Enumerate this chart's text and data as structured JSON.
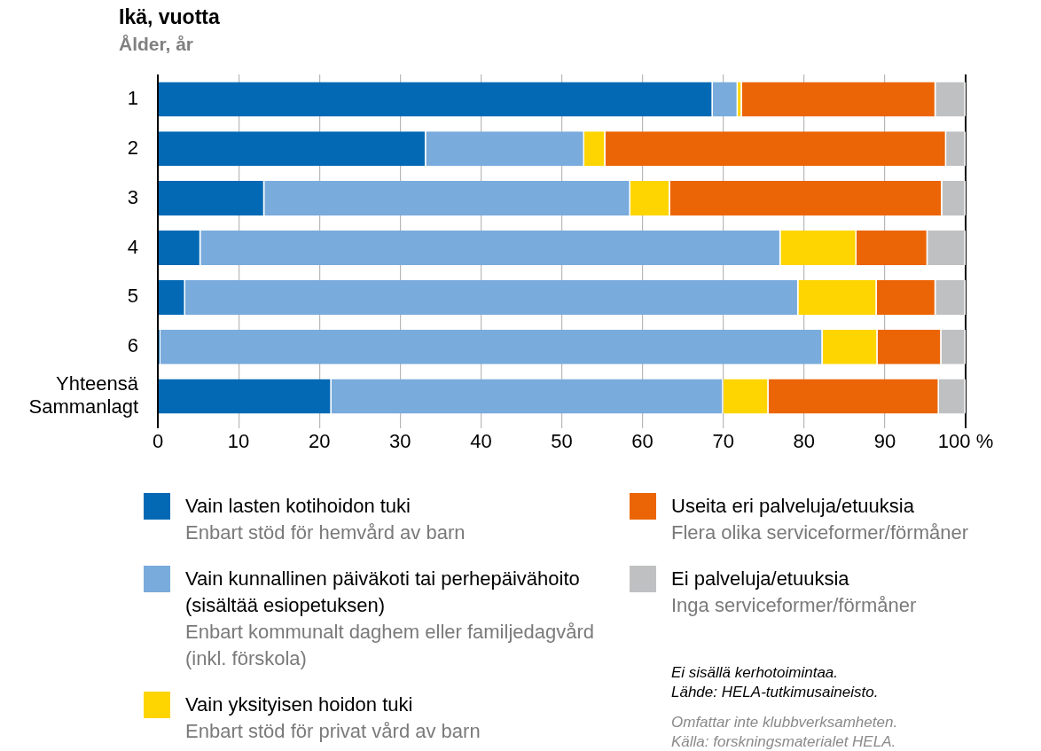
{
  "chart_data": {
    "type": "bar",
    "orientation": "horizontal",
    "stacked": true,
    "title": "Ikä, vuotta",
    "subtitle": "Ålder, år",
    "categories": [
      "1",
      "2",
      "3",
      "4",
      "5",
      "6",
      "Yhteensä\nSammanlagt"
    ],
    "series": [
      {
        "name": "Vain lasten kotihoidon tuki\nEnbart stöd för hemvård av barn",
        "color": "#0369b5",
        "values": [
          68.7,
          33.2,
          13.2,
          5.3,
          3.4,
          0.3,
          21.5
        ]
      },
      {
        "name": "Vain kunnallinen päiväkoti tai perhepäivähoito (sisältää esiopetuksen)\nEnbart kommunalt daghem eller familjedagvård (inkl. förskola)",
        "color": "#79abdc",
        "values": [
          3.1,
          19.6,
          45.3,
          71.8,
          75.9,
          82.0,
          48.5
        ]
      },
      {
        "name": "Vain yksityisen hoidon tuki\nEnbart stöd för privat vård av barn",
        "color": "#fed500",
        "values": [
          0.5,
          2.6,
          4.9,
          9.4,
          9.7,
          6.8,
          5.6
        ]
      },
      {
        "name": "Useita eri palveluja/etuuksia\nFlera olika serviceformer/förmåner",
        "color": "#eb6506",
        "values": [
          24.0,
          42.2,
          33.7,
          8.8,
          7.3,
          7.9,
          21.1
        ]
      },
      {
        "name": "Ei palveluja/etuuksia\nInga serviceformer/förmåner",
        "color": "#bfc0c2",
        "values": [
          3.7,
          2.4,
          2.9,
          4.7,
          3.7,
          3.0,
          3.3
        ]
      }
    ],
    "xlim": [
      0,
      100
    ],
    "xticks": [
      0,
      10,
      20,
      30,
      40,
      50,
      60,
      70,
      80,
      90,
      {
        "value": 100,
        "label": "100 %"
      }
    ],
    "grid": "x",
    "legend": "bottom",
    "annotations": [
      "Ei sisällä kerhotoimintaa.\nLähde: HELA-tutkimusaineisto.",
      "Omfattar inte klubbverksamheten.\nKälla: forskningsmaterialet HELA."
    ]
  }
}
